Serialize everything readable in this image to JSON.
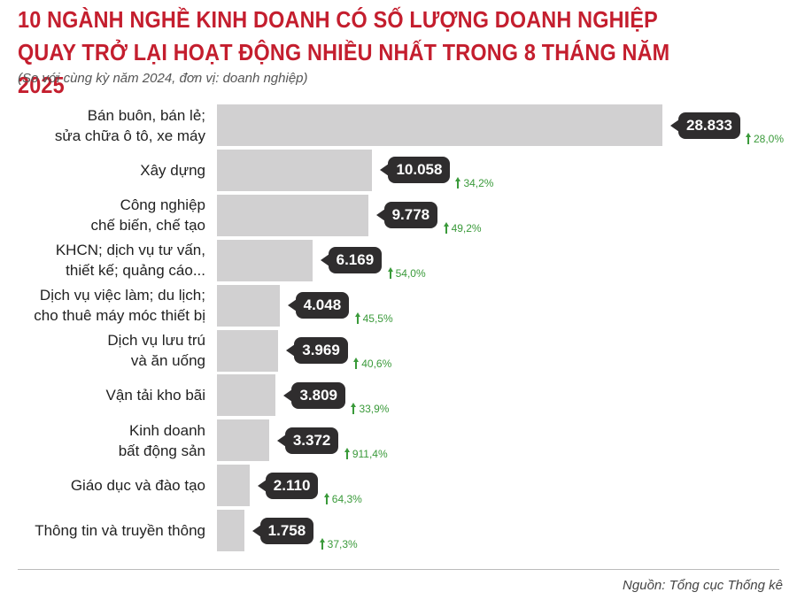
{
  "chart_data": {
    "type": "bar",
    "title": "10 NGÀNH NGHỀ KINH DOANH CÓ SỐ LƯỢNG DOANH NGHIỆP\nQUAY TRỞ LẠI HOẠT ĐỘNG NHIỀU NHẤT TRONG 8 THÁNG NĂM 2025",
    "subtitle": "(So với cùng kỳ năm 2024, đơn vị: doanh nghiệp)",
    "categories": [
      "Bán buôn, bán lẻ;\nsửa chữa ô tô, xe máy",
      "Xây dựng",
      "Công nghiệp\nchế biến, chế tạo",
      "KHCN; dịch vụ tư vấn,\nthiết kế; quảng cáo...",
      "Dịch vụ việc làm; du lịch;\ncho thuê máy móc thiết bị",
      "Dịch vụ lưu trú\nvà ăn uống",
      "Vận tải kho bãi",
      "Kinh doanh\nbất động sản",
      "Giáo dục và đào tạo",
      "Thông tin và truyền thông"
    ],
    "values": [
      28833,
      10058,
      9778,
      6169,
      4048,
      3969,
      3809,
      3372,
      2110,
      1758
    ],
    "value_labels": [
      "28.833",
      "10.058",
      "9.778",
      "6.169",
      "4.048",
      "3.969",
      "3.809",
      "3.372",
      "2.110",
      "1.758"
    ],
    "growth": [
      28.0,
      34.2,
      49.2,
      54.0,
      45.5,
      40.6,
      33.9,
      911.4,
      64.3,
      37.3
    ],
    "growth_labels": [
      "28,0%",
      "34,2%",
      "49,2%",
      "54,0%",
      "45,5%",
      "40,6%",
      "33,9%",
      "911,4%",
      "64,3%",
      "37,3%"
    ],
    "color": "#d1d0d1",
    "source": "Nguồn: Tổng cục Thống kê"
  }
}
